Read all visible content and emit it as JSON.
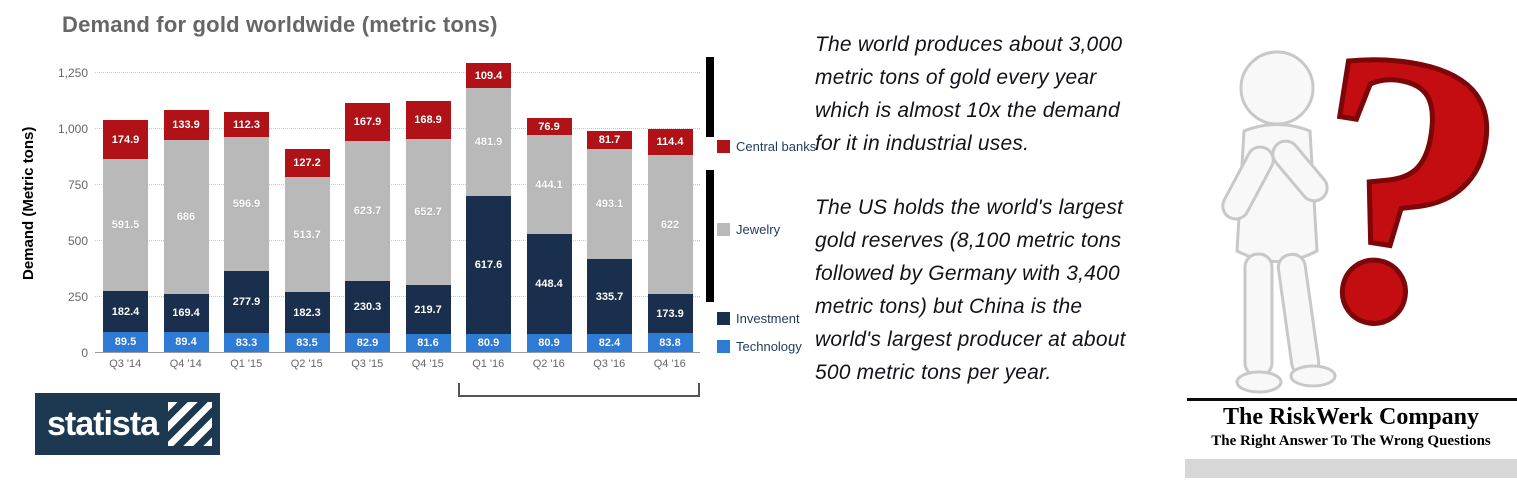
{
  "chart": {
    "title": "Demand for gold worldwide (metric tons)",
    "y_axis_label": "Demand (Metric tons)",
    "y_ticks": [
      "1,250",
      "1,000",
      "750",
      "500",
      "250",
      "0"
    ],
    "x_labels": [
      "Q3 '14",
      "Q4 '14",
      "Q1 '15",
      "Q2 '15",
      "Q3 '15",
      "Q4 '15",
      "Q1 '16",
      "Q2 '16",
      "Q3 '16",
      "Q4 '16"
    ],
    "legend": [
      "Central banks",
      "Jewelry",
      "Investment",
      "Technology"
    ]
  },
  "chart_data": {
    "type": "bar",
    "stacked": true,
    "title": "Demand for gold worldwide (metric tons)",
    "ylabel": "Demand (Metric tons)",
    "ylim": [
      0,
      1250
    ],
    "grid": true,
    "legend_position": "right",
    "categories": [
      "Q3 '14",
      "Q4 '14",
      "Q1 '15",
      "Q2 '15",
      "Q3 '15",
      "Q4 '15",
      "Q1 '16",
      "Q2 '16",
      "Q3 '16",
      "Q4 '16"
    ],
    "series": [
      {
        "name": "Technology",
        "color": "#2d7bd5",
        "values": [
          89.5,
          89.4,
          83.3,
          83.5,
          82.9,
          81.6,
          80.9,
          80.9,
          82.4,
          83.8
        ]
      },
      {
        "name": "Investment",
        "color": "#1a2f4d",
        "values": [
          182.4,
          169.4,
          277.9,
          182.3,
          230.3,
          219.7,
          617.6,
          448.4,
          335.7,
          173.9
        ]
      },
      {
        "name": "Jewelry",
        "color": "#b9b9b9",
        "values": [
          591.5,
          686,
          596.9,
          513.7,
          623.7,
          652.7,
          481.9,
          444.1,
          493.1,
          622
        ]
      },
      {
        "name": "Central banks",
        "color": "#b01217",
        "values": [
          174.9,
          133.9,
          112.3,
          127.2,
          167.9,
          168.9,
          109.4,
          76.9,
          81.7,
          114.4
        ]
      }
    ]
  },
  "middle_text": {
    "para1_lines": [
      "The world produces about 3,000",
      "metric tons of gold every year",
      "which is almost 10x the demand",
      "for it in industrial uses."
    ],
    "para2_lines": [
      "The US holds the world's largest",
      "gold reserves (8,100 metric tons",
      "followed by Germany with 3,400",
      "metric tons) but China is the",
      "world's largest producer at about",
      "500 metric tons per year."
    ]
  },
  "statista_label": "statista",
  "riskwerk": {
    "company_name": "The RiskWerk Company",
    "tagline": "The Right Answer To The Wrong Questions",
    "question_mark": "?"
  }
}
